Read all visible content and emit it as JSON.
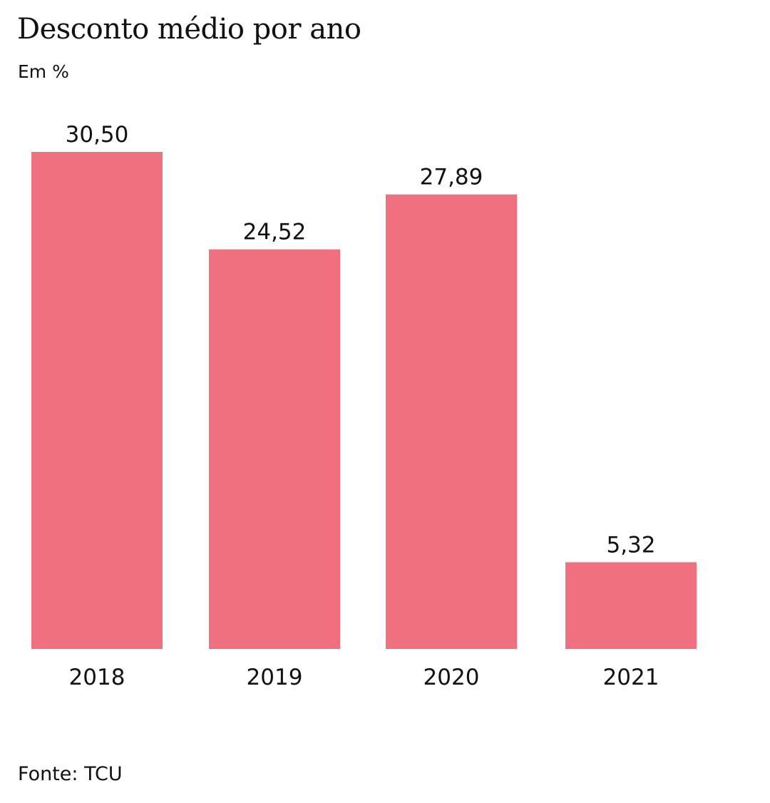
{
  "chart_data": {
    "type": "bar",
    "title": "Desconto médio por ano",
    "subtitle": "Em %",
    "categories": [
      "2018",
      "2019",
      "2020",
      "2021"
    ],
    "values": [
      30.5,
      24.52,
      27.89,
      5.32
    ],
    "value_labels": [
      "30,50",
      "24,52",
      "27,89",
      "5,32"
    ],
    "xlabel": "",
    "ylabel": "",
    "ylim": [
      0,
      30.5
    ],
    "grid": false,
    "legend": "none",
    "bar_color": "#f07080",
    "source": "Fonte: TCU"
  }
}
